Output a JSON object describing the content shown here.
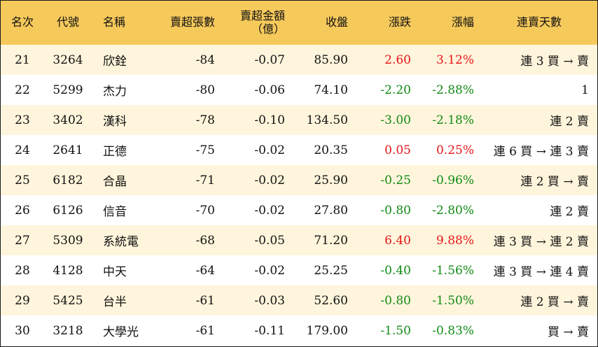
{
  "headers": {
    "rank": "名次",
    "code": "代號",
    "name": "名稱",
    "sell_shares": "賣超張數",
    "sell_amount_line1": "賣超金額",
    "sell_amount_line2": "（億）",
    "close": "收盤",
    "change": "漲跌",
    "change_pct": "漲幅",
    "streak": "連賣天數"
  },
  "colors": {
    "header_bg": "#f6c95b",
    "stripe_bg": "#fff5dc",
    "up": "#e8141b",
    "down": "#118a14"
  },
  "rows": [
    {
      "rank": "21",
      "code": "3264",
      "name": "欣銓",
      "sell_shares": "-84",
      "sell_amount": "-0.07",
      "close": "85.90",
      "change": "2.60",
      "change_pct": "3.12%",
      "dir": "up",
      "streak": "連 3 買 → 賣"
    },
    {
      "rank": "22",
      "code": "5299",
      "name": "杰力",
      "sell_shares": "-80",
      "sell_amount": "-0.06",
      "close": "74.10",
      "change": "-2.20",
      "change_pct": "-2.88%",
      "dir": "down",
      "streak": "1"
    },
    {
      "rank": "23",
      "code": "3402",
      "name": "漢科",
      "sell_shares": "-78",
      "sell_amount": "-0.10",
      "close": "134.50",
      "change": "-3.00",
      "change_pct": "-2.18%",
      "dir": "down",
      "streak": "連 2 賣"
    },
    {
      "rank": "24",
      "code": "2641",
      "name": "正德",
      "sell_shares": "-75",
      "sell_amount": "-0.02",
      "close": "20.35",
      "change": "0.05",
      "change_pct": "0.25%",
      "dir": "up",
      "streak": "連 6 買 → 連 3 賣"
    },
    {
      "rank": "25",
      "code": "6182",
      "name": "合晶",
      "sell_shares": "-71",
      "sell_amount": "-0.02",
      "close": "25.90",
      "change": "-0.25",
      "change_pct": "-0.96%",
      "dir": "down",
      "streak": "連 2 買 → 賣"
    },
    {
      "rank": "26",
      "code": "6126",
      "name": "信音",
      "sell_shares": "-70",
      "sell_amount": "-0.02",
      "close": "27.80",
      "change": "-0.80",
      "change_pct": "-2.80%",
      "dir": "down",
      "streak": "連 2 賣"
    },
    {
      "rank": "27",
      "code": "5309",
      "name": "系統電",
      "sell_shares": "-68",
      "sell_amount": "-0.05",
      "close": "71.20",
      "change": "6.40",
      "change_pct": "9.88%",
      "dir": "up",
      "streak": "連 3 買 → 連 2 賣"
    },
    {
      "rank": "28",
      "code": "4128",
      "name": "中天",
      "sell_shares": "-64",
      "sell_amount": "-0.02",
      "close": "25.25",
      "change": "-0.40",
      "change_pct": "-1.56%",
      "dir": "down",
      "streak": "連 3 買 → 連 4 賣"
    },
    {
      "rank": "29",
      "code": "5425",
      "name": "台半",
      "sell_shares": "-61",
      "sell_amount": "-0.03",
      "close": "52.60",
      "change": "-0.80",
      "change_pct": "-1.50%",
      "dir": "down",
      "streak": "連 2 買 → 賣"
    },
    {
      "rank": "30",
      "code": "3218",
      "name": "大學光",
      "sell_shares": "-61",
      "sell_amount": "-0.11",
      "close": "179.00",
      "change": "-1.50",
      "change_pct": "-0.83%",
      "dir": "down",
      "streak": "買 → 賣"
    }
  ]
}
